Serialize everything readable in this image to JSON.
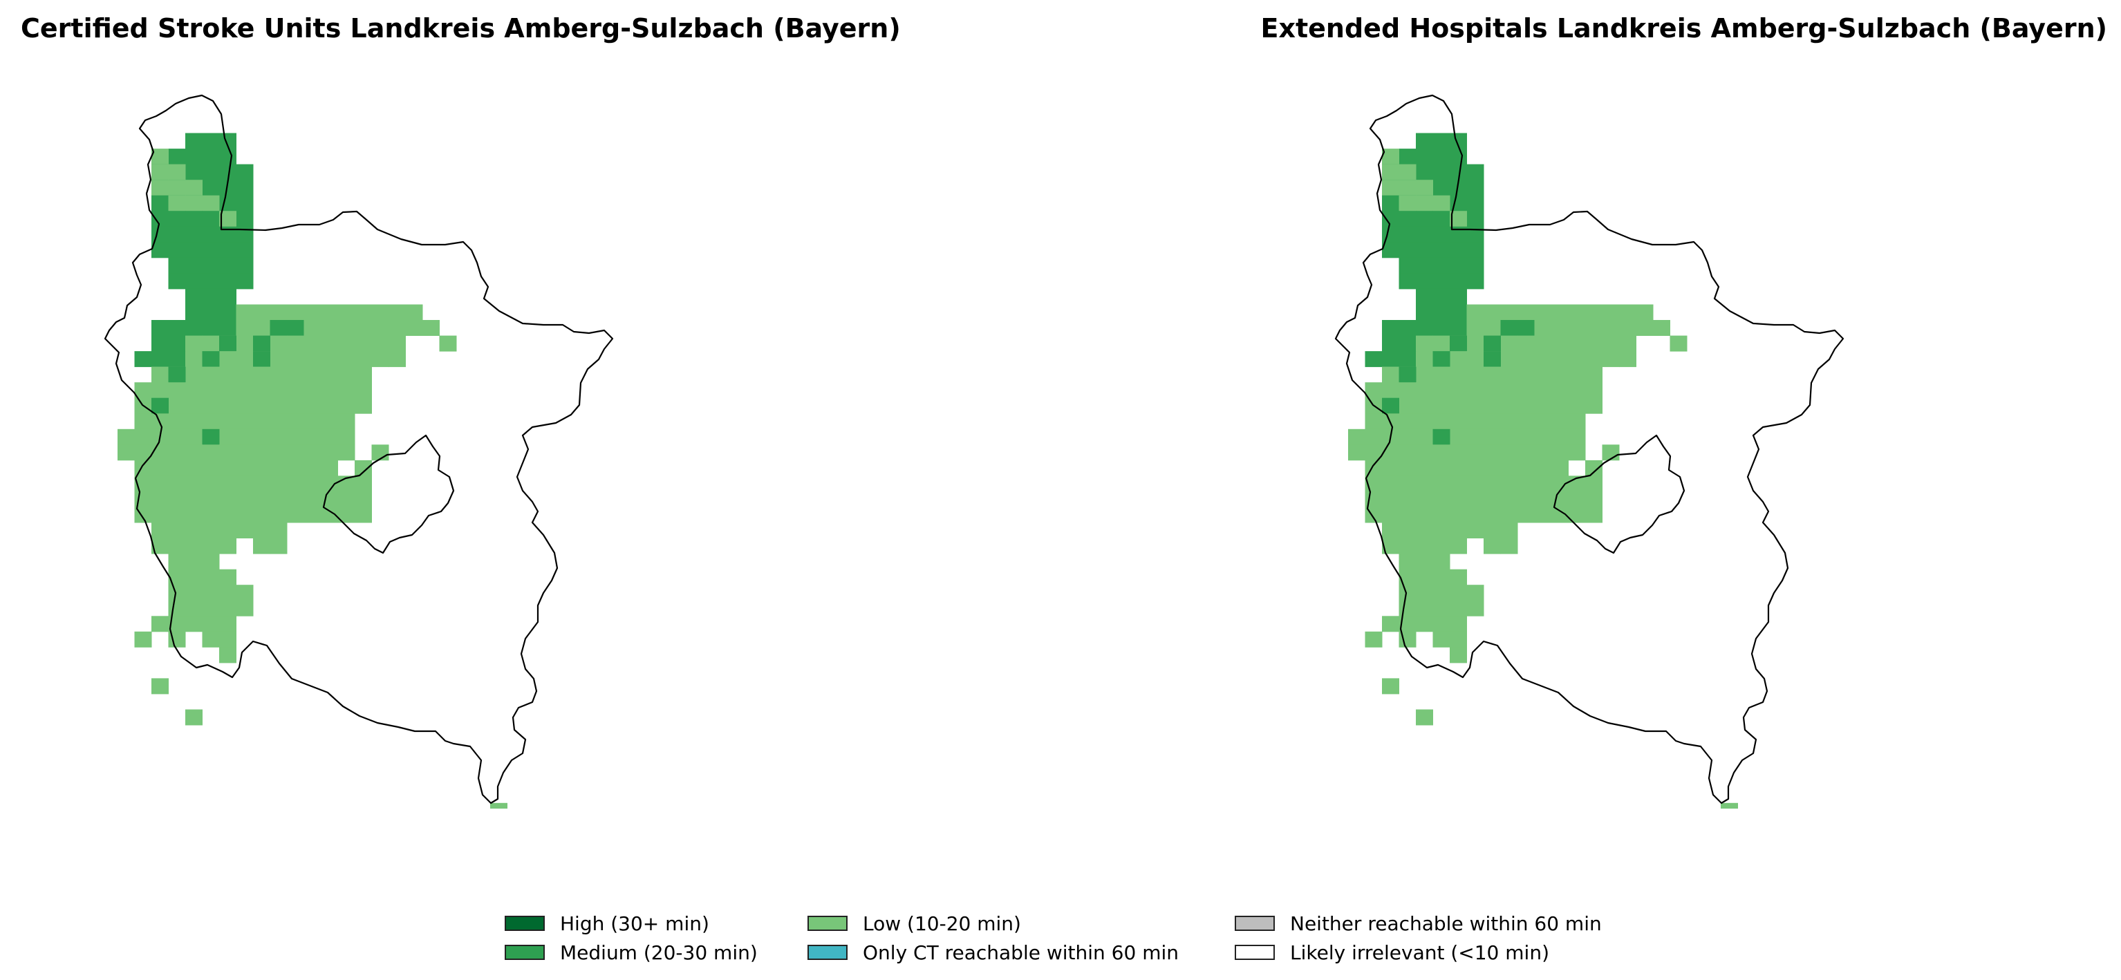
{
  "titles": {
    "left": "Certified Stroke Units Landkreis Amberg-Sulzbach (Bayern)",
    "right": "Extended Hospitals Landkreis Amberg-Sulzbach (Bayern)"
  },
  "legend": {
    "items": [
      {
        "key": "high",
        "label": "High (30+ min)",
        "color": "#00692f"
      },
      {
        "key": "medium",
        "label": "Medium (20-30 min)",
        "color": "#2ea051"
      },
      {
        "key": "low",
        "label": "Low (10-20 min)",
        "color": "#78c679"
      },
      {
        "key": "ct",
        "label": "Only CT reachable within 60 min",
        "color": "#41b6c4"
      },
      {
        "key": "neither",
        "label": "Neither reachable within 60 min",
        "color": "#bdbdbd"
      },
      {
        "key": "irrelevant",
        "label": "Likely irrelevant (<10 min)",
        "color": "#ffffff"
      }
    ]
  },
  "colors": {
    "outline": "#000000",
    "medium": "#2ea051",
    "low": "#78c679"
  }
}
